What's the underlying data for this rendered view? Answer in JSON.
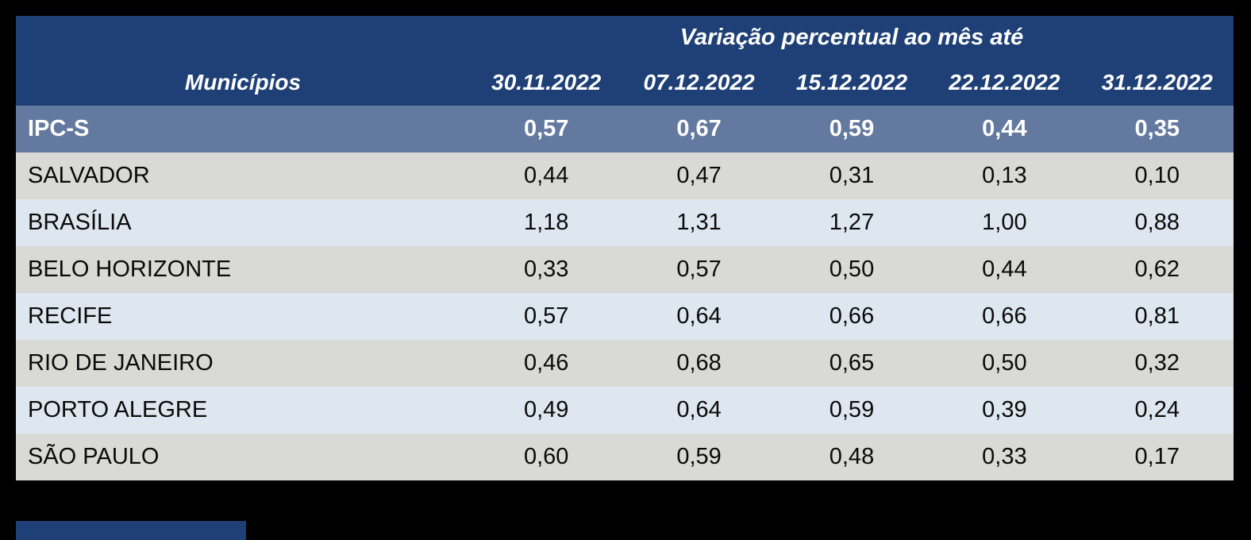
{
  "table": {
    "header": {
      "group_title": "Variação percentual ao mês até",
      "first_column_label": "Municípios",
      "date_columns": [
        "30.11.2022",
        "07.12.2022",
        "15.12.2022",
        "22.12.2022",
        "31.12.2022"
      ]
    },
    "summary_row": {
      "label": "IPC-S",
      "values": [
        "0,57",
        "0,67",
        "0,59",
        "0,44",
        "0,35"
      ]
    },
    "rows": [
      {
        "label": "SALVADOR",
        "values": [
          "0,44",
          "0,47",
          "0,31",
          "0,13",
          "0,10"
        ]
      },
      {
        "label": "BRASÍLIA",
        "values": [
          "1,18",
          "1,31",
          "1,27",
          "1,00",
          "0,88"
        ]
      },
      {
        "label": "BELO HORIZONTE",
        "values": [
          "0,33",
          "0,57",
          "0,50",
          "0,44",
          "0,62"
        ]
      },
      {
        "label": "RECIFE",
        "values": [
          "0,57",
          "0,64",
          "0,66",
          "0,66",
          "0,81"
        ]
      },
      {
        "label": "RIO DE JANEIRO",
        "values": [
          "0,46",
          "0,68",
          "0,65",
          "0,50",
          "0,32"
        ]
      },
      {
        "label": "PORTO ALEGRE",
        "values": [
          "0,49",
          "0,64",
          "0,59",
          "0,39",
          "0,24"
        ]
      },
      {
        "label": "SÃO PAULO",
        "values": [
          "0,60",
          "0,59",
          "0,48",
          "0,33",
          "0,17"
        ]
      }
    ]
  },
  "colors": {
    "background": "#000000",
    "header_navy": "#1F4076",
    "summary_row_blue": "#6379A0",
    "row_gray": "#D9D9D6",
    "row_light_blue": "#DEE7EF",
    "header_text": "#FFFFFF",
    "data_text": "#0A0A0A"
  },
  "chart_data": {
    "type": "table",
    "title": "Variação percentual ao mês até",
    "columns": [
      "Municípios",
      "30.11.2022",
      "07.12.2022",
      "15.12.2022",
      "22.12.2022",
      "31.12.2022"
    ],
    "series": [
      {
        "name": "IPC-S",
        "values": [
          0.57,
          0.67,
          0.59,
          0.44,
          0.35
        ]
      },
      {
        "name": "SALVADOR",
        "values": [
          0.44,
          0.47,
          0.31,
          0.13,
          0.1
        ]
      },
      {
        "name": "BRASÍLIA",
        "values": [
          1.18,
          1.31,
          1.27,
          1.0,
          0.88
        ]
      },
      {
        "name": "BELO HORIZONTE",
        "values": [
          0.33,
          0.57,
          0.5,
          0.44,
          0.62
        ]
      },
      {
        "name": "RECIFE",
        "values": [
          0.57,
          0.64,
          0.66,
          0.66,
          0.81
        ]
      },
      {
        "name": "RIO DE JANEIRO",
        "values": [
          0.46,
          0.68,
          0.65,
          0.5,
          0.32
        ]
      },
      {
        "name": "PORTO ALEGRE",
        "values": [
          0.49,
          0.64,
          0.59,
          0.39,
          0.24
        ]
      },
      {
        "name": "SÃO PAULO",
        "values": [
          0.6,
          0.59,
          0.48,
          0.33,
          0.17
        ]
      }
    ],
    "decimal_separator": ",",
    "layout": "dark background, navy header band, highlighted summary row, alternating gray/light-blue rows"
  }
}
